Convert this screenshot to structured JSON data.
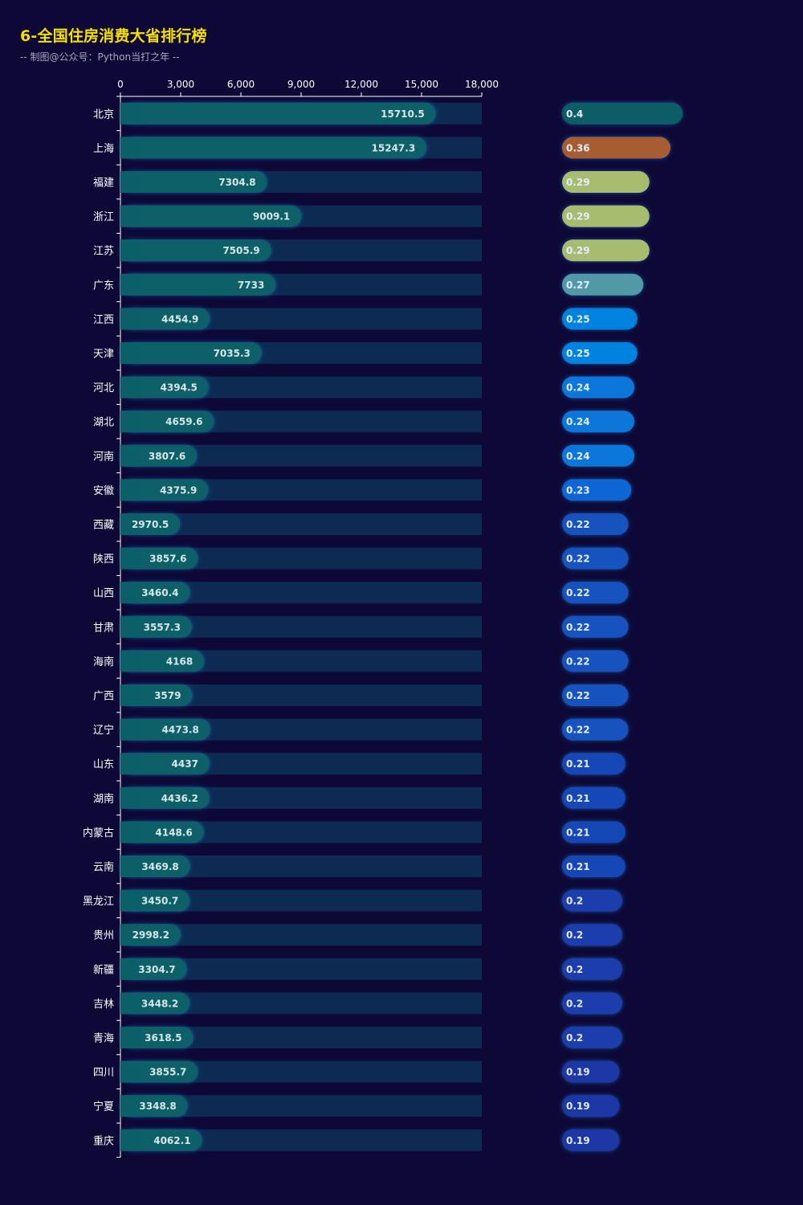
{
  "header": {
    "title": "6-全国住房消费大省排行榜",
    "subtitle": "-- 制图@公众号：Python当打之年 --"
  },
  "chart_data": [
    {
      "type": "bar",
      "orientation": "horizontal",
      "xlim": [
        0,
        18000
      ],
      "xticks": [
        0,
        3000,
        6000,
        9000,
        12000,
        15000,
        18000
      ],
      "xtick_labels": [
        "0",
        "3,000",
        "6,000",
        "9,000",
        "12,000",
        "15,000",
        "18,000"
      ],
      "categories": [
        "北京",
        "上海",
        "福建",
        "浙江",
        "江苏",
        "广东",
        "江西",
        "天津",
        "河北",
        "湖北",
        "河南",
        "安徽",
        "西藏",
        "陕西",
        "山西",
        "甘肃",
        "海南",
        "广西",
        "辽宁",
        "山东",
        "湖南",
        "内蒙古",
        "云南",
        "黑龙江",
        "贵州",
        "新疆",
        "吉林",
        "青海",
        "四川",
        "宁夏",
        "重庆"
      ],
      "values": [
        15710.5,
        15247.3,
        7304.8,
        9009.1,
        7505.9,
        7733,
        4454.9,
        7035.3,
        4394.5,
        4659.6,
        3807.6,
        4375.9,
        2970.5,
        3857.6,
        3460.4,
        3557.3,
        4168,
        3579,
        4473.8,
        4437,
        4436.2,
        4148.6,
        3469.8,
        3450.7,
        2998.2,
        3304.7,
        3448.2,
        3618.5,
        3855.7,
        3348.8,
        4062.1
      ],
      "value_labels": [
        "15710.5",
        "15247.3",
        "7304.8",
        "9009.1",
        "7505.9",
        "7733",
        "4454.9",
        "7035.3",
        "4394.5",
        "4659.6",
        "3807.6",
        "4375.9",
        "2970.5",
        "3857.6",
        "3460.4",
        "3557.3",
        "4168",
        "3579",
        "4473.8",
        "4437",
        "4436.2",
        "4148.6",
        "3469.8",
        "3450.7",
        "2998.2",
        "3304.7",
        "3448.2",
        "3618.5",
        "3855.7",
        "3348.8",
        "4062.1"
      ],
      "bar_color": "#0a5f68",
      "background_bar_color": "#0c2a52",
      "grid": false
    },
    {
      "type": "bar",
      "orientation": "horizontal",
      "axis_visible": false,
      "values": [
        0.4,
        0.36,
        0.29,
        0.29,
        0.29,
        0.27,
        0.25,
        0.25,
        0.24,
        0.24,
        0.24,
        0.23,
        0.22,
        0.22,
        0.22,
        0.22,
        0.22,
        0.22,
        0.22,
        0.21,
        0.21,
        0.21,
        0.21,
        0.2,
        0.2,
        0.2,
        0.2,
        0.2,
        0.19,
        0.19,
        0.19
      ],
      "value_labels": [
        "0.4",
        "0.36",
        "0.29",
        "0.29",
        "0.29",
        "0.27",
        "0.25",
        "0.25",
        "0.24",
        "0.24",
        "0.24",
        "0.23",
        "0.22",
        "0.22",
        "0.22",
        "0.22",
        "0.22",
        "0.22",
        "0.22",
        "0.21",
        "0.21",
        "0.21",
        "0.21",
        "0.2",
        "0.2",
        "0.2",
        "0.2",
        "0.2",
        "0.19",
        "0.19",
        "0.19"
      ],
      "colors": [
        "#0b5d66",
        "#a65d30",
        "#a6bd70",
        "#a6bd70",
        "#a6bd70",
        "#5199a6",
        "#0583e0",
        "#0583e0",
        "#0876db",
        "#0876db",
        "#0876db",
        "#0d66d4",
        "#1353bf",
        "#1353bf",
        "#1353bf",
        "#1353bf",
        "#1353bf",
        "#1353bf",
        "#1353bf",
        "#1646b7",
        "#1646b7",
        "#1646b7",
        "#1646b7",
        "#1b3cae",
        "#1b3cae",
        "#1b3cae",
        "#1b3cae",
        "#1b3cae",
        "#1f38a6",
        "#1f38a6",
        "#1f38a6"
      ],
      "grid": false
    }
  ]
}
